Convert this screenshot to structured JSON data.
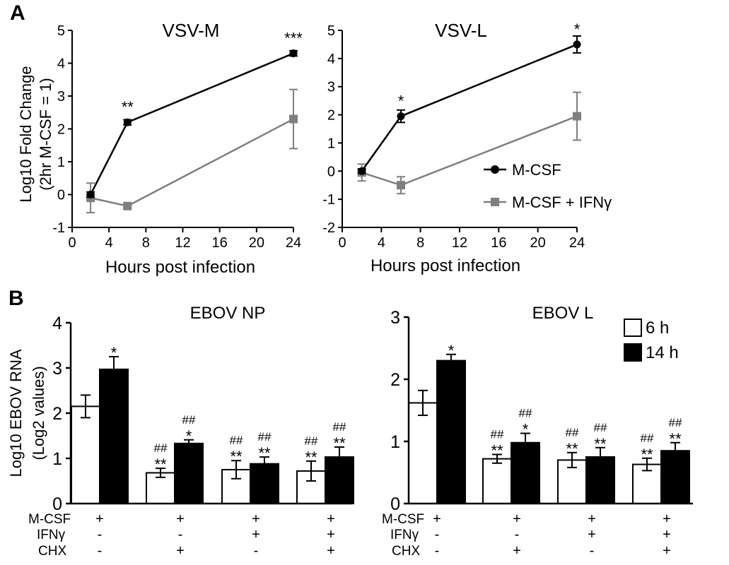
{
  "panel_labels": [
    "A",
    "B"
  ],
  "chart_data": [
    {
      "type": "line",
      "title": "VSV-M",
      "ylabel": "Log10 Fold Change (2hr M-CSF = 1)",
      "ylabel_lines": [
        "Log10 Fold Change",
        "(2hr M-CSF = 1)"
      ],
      "xlabel": "Hours post infection",
      "xlim": [
        0,
        24
      ],
      "xticks": [
        "0",
        "4",
        "8",
        "12",
        "16",
        "20",
        "24"
      ],
      "ylim": [
        -1,
        5
      ],
      "yticks": [
        "-1",
        "0",
        "1",
        "2",
        "3",
        "4",
        "5"
      ],
      "x": [
        2,
        6,
        24
      ],
      "series": [
        {
          "name": "M-CSF",
          "color": "#000000",
          "marker": "circle",
          "values": [
            0,
            2.2,
            4.3
          ],
          "err": [
            0.08,
            0.08,
            0.08
          ]
        },
        {
          "name": "M-CSF + IFNγ",
          "color": "#7f7f7f",
          "marker": "square",
          "values": [
            -0.1,
            -0.35,
            2.3
          ],
          "err": [
            0.45,
            0.08,
            0.9
          ]
        }
      ],
      "annotations": [
        {
          "x": 6,
          "y": 2.2,
          "text": "**"
        },
        {
          "x": 24,
          "y": 4.3,
          "text": "***"
        }
      ]
    },
    {
      "type": "line",
      "title": "VSV-L",
      "xlabel": "Hours post infection",
      "xlim": [
        0,
        24
      ],
      "xticks": [
        "0",
        "4",
        "8",
        "12",
        "16",
        "20",
        "24"
      ],
      "ylim": [
        -2,
        5
      ],
      "yticks": [
        "-2",
        "-1",
        "0",
        "1",
        "2",
        "3",
        "4",
        "5"
      ],
      "x": [
        2,
        6,
        24
      ],
      "series": [
        {
          "name": "M-CSF",
          "color": "#000000",
          "marker": "circle",
          "values": [
            0,
            1.95,
            4.5
          ],
          "err": [
            0.08,
            0.22,
            0.3
          ]
        },
        {
          "name": "M-CSF + IFNγ",
          "color": "#7f7f7f",
          "marker": "square",
          "values": [
            -0.05,
            -0.5,
            1.95
          ],
          "err": [
            0.3,
            0.3,
            0.85
          ]
        }
      ],
      "annotations": [
        {
          "x": 6,
          "y": 1.95,
          "text": "*"
        },
        {
          "x": 24,
          "y": 4.5,
          "text": "*"
        }
      ],
      "legend": [
        "M-CSF",
        "M-CSF + IFNγ"
      ],
      "legend_position": "right"
    },
    {
      "type": "bar",
      "title": "EBOV NP",
      "ylabel": "Log10 EBOV RNA (Log2 values)",
      "ylabel_lines": [
        "Log10 EBOV RNA",
        "(Log2 values)"
      ],
      "ylim": [
        0,
        4
      ],
      "yticks": [
        "0",
        "1",
        "2",
        "3",
        "4"
      ],
      "categories": [
        "M-CSF",
        "M-CSF + CHX",
        "M-CSF + IFNγ",
        "M-CSF + IFNγ + CHX"
      ],
      "series": [
        {
          "name": "6 h",
          "color": "#ffffff",
          "values": [
            2.15,
            0.68,
            0.75,
            0.72
          ],
          "err": [
            0.25,
            0.1,
            0.2,
            0.22
          ]
        },
        {
          "name": "14 h",
          "color": "#000000",
          "values": [
            2.97,
            1.33,
            0.88,
            1.03
          ],
          "err": [
            0.28,
            0.08,
            0.15,
            0.22
          ]
        }
      ],
      "annotations": [
        [
          "",
          "##\n**",
          "##\n**",
          "##\n**"
        ],
        [
          "*",
          "##\n*",
          "##\n**",
          "##\n**"
        ]
      ]
    },
    {
      "type": "bar",
      "title": "EBOV L",
      "ylim": [
        0,
        3
      ],
      "yticks": [
        "0",
        "1",
        "2",
        "3"
      ],
      "categories": [
        "M-CSF",
        "M-CSF + CHX",
        "M-CSF + IFNγ",
        "M-CSF + IFNγ + CHX"
      ],
      "series": [
        {
          "name": "6 h",
          "color": "#ffffff",
          "values": [
            1.62,
            0.72,
            0.7,
            0.63
          ],
          "err": [
            0.2,
            0.07,
            0.12,
            0.1
          ]
        },
        {
          "name": "14 h",
          "color": "#000000",
          "values": [
            2.3,
            0.98,
            0.75,
            0.85
          ],
          "err": [
            0.1,
            0.15,
            0.15,
            0.13
          ]
        }
      ],
      "annotations": [
        [
          "",
          "##\n**",
          "##\n**",
          "##\n**"
        ],
        [
          "*",
          "##\n*",
          "##\n**",
          "##\n**"
        ]
      ],
      "legend": [
        "6 h",
        "14 h"
      ],
      "legend_position": "top-right"
    }
  ],
  "conditions": {
    "row_labels": [
      "M-CSF",
      "IFNγ",
      "CHX"
    ],
    "values": [
      [
        "+",
        "-",
        "-"
      ],
      [
        "+",
        "-",
        "+"
      ],
      [
        "+",
        "+",
        "-"
      ],
      [
        "+",
        "+",
        "+"
      ]
    ]
  }
}
